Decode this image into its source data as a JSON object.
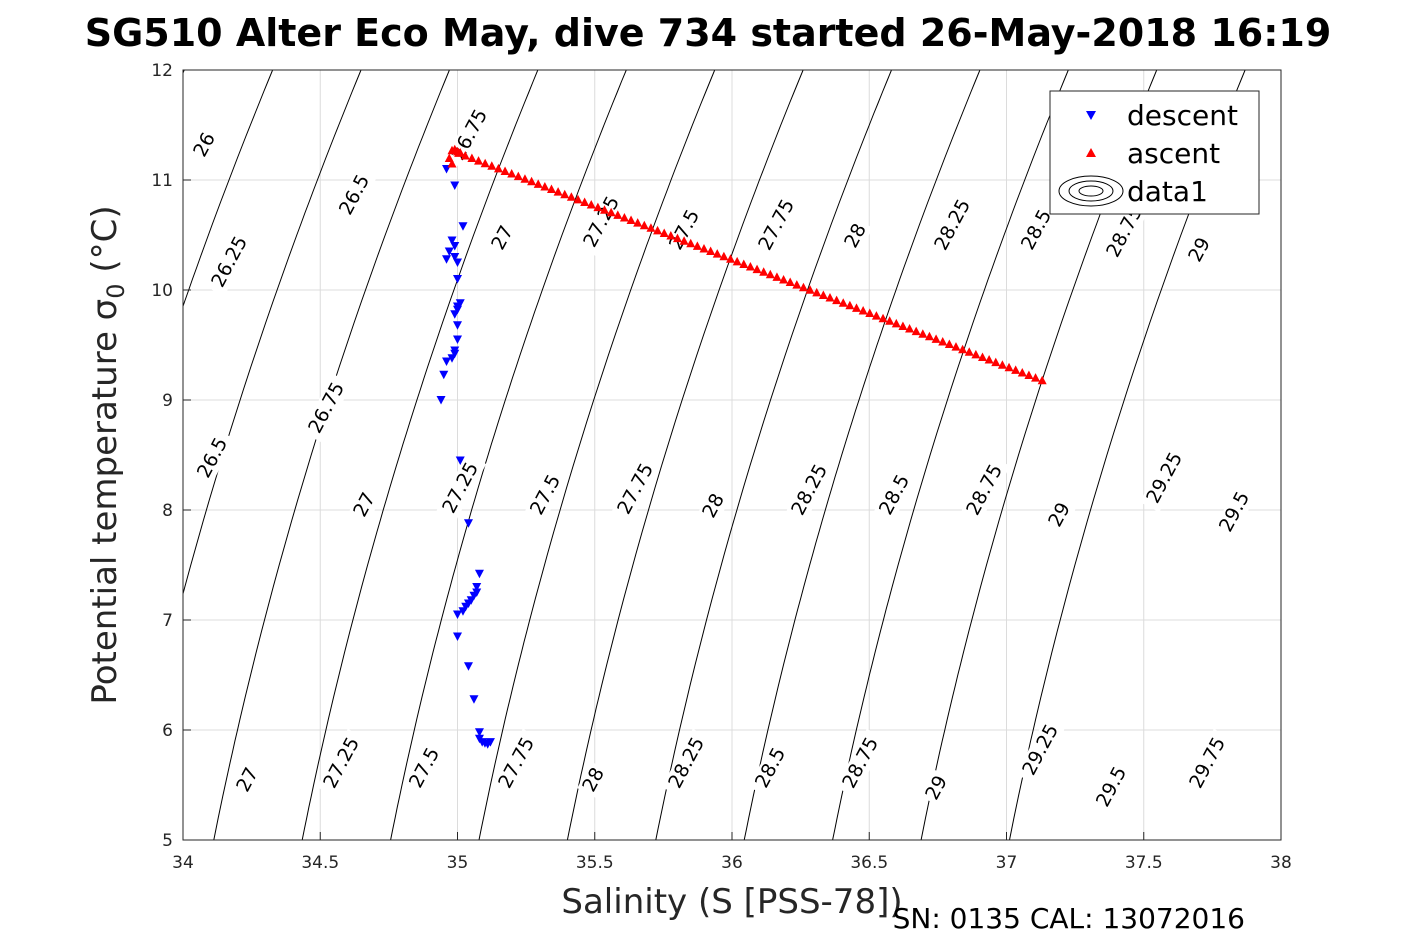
{
  "chart_data": {
    "type": "scatter",
    "title": "SG510 Alter Eco May, dive 734 started 26-May-2018 16:19",
    "xlabel": "Salinity (S [PSS-78])",
    "ylabel_main": "Potential temperature σ",
    "ylabel_sub": "0",
    "ylabel_unit": " (°C)",
    "footer": "SN: 0135  CAL: 13072016",
    "xlim": [
      34,
      38
    ],
    "ylim": [
      5,
      12
    ],
    "xticks": [
      "34",
      "34.5",
      "35",
      "35.5",
      "36",
      "36.5",
      "37",
      "37.5",
      "38"
    ],
    "yticks": [
      "5",
      "6",
      "7",
      "8",
      "9",
      "10",
      "11",
      "12"
    ],
    "grid": true,
    "legend": {
      "placement": "top-right",
      "entries": [
        "descent",
        "ascent",
        "data1"
      ]
    },
    "series": [
      {
        "name": "descent",
        "marker": "triangle-down",
        "color": "#0000ff",
        "points": [
          [
            34.96,
            11.1
          ],
          [
            34.99,
            10.95
          ],
          [
            35.02,
            10.58
          ],
          [
            34.98,
            10.45
          ],
          [
            34.99,
            10.4
          ],
          [
            34.97,
            10.35
          ],
          [
            34.99,
            10.3
          ],
          [
            34.96,
            10.28
          ],
          [
            35.0,
            10.25
          ],
          [
            35.0,
            10.1
          ],
          [
            35.01,
            9.88
          ],
          [
            35.0,
            9.85
          ],
          [
            35.0,
            9.82
          ],
          [
            34.99,
            9.78
          ],
          [
            35.0,
            9.68
          ],
          [
            35.0,
            9.55
          ],
          [
            34.99,
            9.45
          ],
          [
            34.99,
            9.42
          ],
          [
            34.98,
            9.38
          ],
          [
            34.96,
            9.35
          ],
          [
            34.95,
            9.23
          ],
          [
            34.94,
            9.0
          ],
          [
            35.01,
            8.45
          ],
          [
            35.04,
            7.88
          ],
          [
            35.08,
            7.42
          ],
          [
            35.07,
            7.3
          ],
          [
            35.07,
            7.25
          ],
          [
            35.06,
            7.22
          ],
          [
            35.05,
            7.18
          ],
          [
            35.04,
            7.15
          ],
          [
            35.03,
            7.12
          ],
          [
            35.02,
            7.08
          ],
          [
            35.0,
            7.05
          ],
          [
            35.0,
            6.85
          ],
          [
            35.04,
            6.58
          ],
          [
            35.06,
            6.28
          ],
          [
            35.08,
            5.98
          ],
          [
            35.08,
            5.92
          ],
          [
            35.09,
            5.89
          ],
          [
            35.1,
            5.88
          ],
          [
            35.11,
            5.87
          ],
          [
            35.12,
            5.89
          ]
        ]
      },
      {
        "name": "ascent",
        "marker": "triangle-up",
        "color": "#ff0000",
        "start": [
          34.98,
          11.27
        ],
        "end": [
          37.13,
          9.18
        ],
        "count": 90,
        "extra_points": [
          [
            34.97,
            11.2
          ],
          [
            34.99,
            11.28
          ],
          [
            35.0,
            11.26
          ],
          [
            35.01,
            11.25
          ],
          [
            34.98,
            11.15
          ]
        ]
      }
    ]
  }
}
